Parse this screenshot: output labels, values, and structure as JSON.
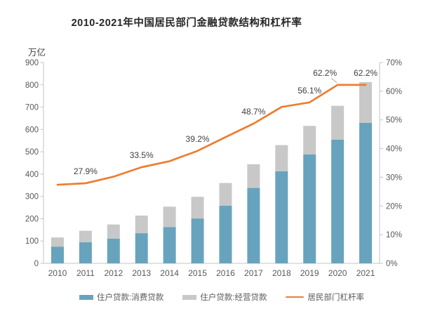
{
  "title": "2010-2021年中国居民部门金融贷款结构和杠杆率",
  "left_axis": {
    "unit": "万亿",
    "ticks": [
      "0",
      "100",
      "200",
      "300",
      "400",
      "500",
      "600",
      "700",
      "800",
      "900"
    ]
  },
  "right_axis": {
    "ticks": [
      "0%",
      "10%",
      "20%",
      "30%",
      "40%",
      "50%",
      "60%",
      "70%"
    ]
  },
  "legend": [
    {
      "label": "住户贷款:消费贷款",
      "type": "bar",
      "color": "#68A3BD"
    },
    {
      "label": "住户贷款:经营贷款",
      "type": "bar",
      "color": "#C8C8C8"
    },
    {
      "label": "居民部门杠杆率",
      "type": "line",
      "color": "#ED7D31"
    }
  ],
  "chart_data": {
    "type": "bar",
    "subtype": "stacked-bar-with-line",
    "title": "2010-2021年中国居民部门金融贷款结构和杠杆率",
    "categories": [
      "2010",
      "2011",
      "2012",
      "2013",
      "2014",
      "2015",
      "2016",
      "2017",
      "2018",
      "2019",
      "2020",
      "2021"
    ],
    "series": [
      {
        "name": "住户贷款:消费贷款",
        "type": "bar",
        "stack": "loans",
        "axis": "left",
        "color": "#68A3BD",
        "values": [
          75,
          95,
          111,
          135,
          162,
          201,
          258,
          338,
          413,
          488,
          554,
          630
        ]
      },
      {
        "name": "住户贷款:经营贷款",
        "type": "bar",
        "stack": "loans",
        "axis": "left",
        "color": "#C8C8C8",
        "values": [
          41,
          51,
          63,
          79,
          92,
          97,
          102,
          106,
          117,
          128,
          152,
          182
        ]
      },
      {
        "name": "居民部门杠杆率",
        "type": "line",
        "axis": "right",
        "color": "#ED7D31",
        "values": [
          27.4,
          27.9,
          30.2,
          33.5,
          35.6,
          39.2,
          44.0,
          48.7,
          54.5,
          56.1,
          62.2,
          62.2
        ]
      }
    ],
    "annotations": [
      {
        "category": "2011",
        "text": "27.9%"
      },
      {
        "category": "2013",
        "text": "33.5%"
      },
      {
        "category": "2015",
        "text": "39.2%"
      },
      {
        "category": "2017",
        "text": "48.7%"
      },
      {
        "category": "2019",
        "text": "56.1%"
      },
      {
        "category": "2020",
        "text": "62.2%",
        "dx": -18,
        "leader": true
      },
      {
        "category": "2021",
        "text": "62.2%"
      }
    ],
    "xlabel": "",
    "ylabel_left": "万亿",
    "ylim_left": [
      0,
      900
    ],
    "ylim_right": [
      0,
      70
    ],
    "grid": false,
    "legend_position": "bottom"
  },
  "colors": {
    "consumer_bar": "#68A3BD",
    "operating_bar": "#C8C8C8",
    "leverage_line": "#ED7D31",
    "axis_line": "#C6C6C6",
    "tick_text": "#595959",
    "annotation_text": "#3F3F3F",
    "leader_line": "#A6A6A6"
  }
}
